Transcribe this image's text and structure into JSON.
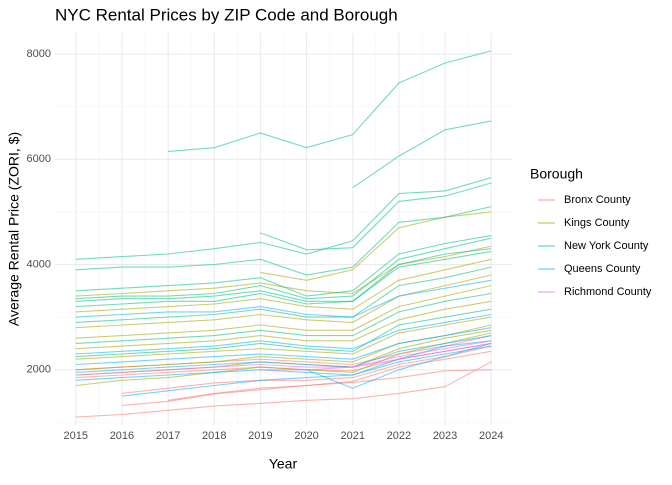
{
  "chart_data": {
    "type": "line",
    "title": "NYC Rental Prices by ZIP Code and Borough",
    "x_label": "Year",
    "y_label": "Average Rental Price (ZORI, $)",
    "legend_title": "Borough",
    "legend_position": "right",
    "grid": true,
    "x": [
      2015,
      2016,
      2017,
      2018,
      2019,
      2020,
      2021,
      2022,
      2023,
      2024
    ],
    "xlim": [
      2014.55,
      2024.45
    ],
    "xticks": [
      2015,
      2016,
      2017,
      2018,
      2019,
      2020,
      2021,
      2022,
      2023,
      2024
    ],
    "ylim": [
      950,
      8400
    ],
    "yticks": [
      2000,
      4000,
      6000,
      8000
    ],
    "yminor_ticks": [
      1000,
      3000,
      5000,
      7000
    ],
    "series": [
      {
        "name": "Bronx County",
        "color": "#F8766D",
        "lines": [
          [
            1100,
            1150,
            1230,
            1310,
            1360,
            1420,
            1450,
            1550,
            1680,
            2150
          ],
          [
            null,
            1320,
            1400,
            1540,
            1620,
            1700,
            1760,
            1850,
            1980,
            2000
          ],
          [
            null,
            null,
            1420,
            1550,
            1650,
            1700,
            1780,
            2050,
            2200,
            2350
          ],
          [
            1850,
            1900,
            1950,
            2000,
            2050,
            2000,
            1980,
            2200,
            2350,
            2500
          ],
          [
            null,
            1550,
            1650,
            1750,
            1800,
            1800,
            1850,
            2100,
            2250,
            2450
          ],
          [
            2000,
            2050,
            2100,
            2150,
            2200,
            2150,
            2100,
            2300,
            2450,
            2650
          ]
        ]
      },
      {
        "name": "Kings County",
        "color": "#A3A500",
        "lines": [
          [
            2800,
            2850,
            2900,
            2950,
            3050,
            2950,
            2900,
            3400,
            3600,
            3800
          ],
          [
            2600,
            2650,
            2700,
            2750,
            2850,
            2750,
            2750,
            3200,
            3400,
            3600
          ],
          [
            3100,
            3150,
            3200,
            3250,
            3350,
            3200,
            3150,
            3700,
            3900,
            4100
          ],
          [
            2400,
            2450,
            2500,
            2550,
            2650,
            2550,
            2550,
            2950,
            3150,
            3300
          ],
          [
            2200,
            2250,
            2300,
            2350,
            2400,
            2350,
            2300,
            2700,
            2850,
            3000
          ],
          [
            1700,
            1800,
            1850,
            1950,
            2050,
            2000,
            1950,
            2300,
            2500,
            2700
          ],
          [
            3400,
            3450,
            3500,
            3550,
            3650,
            3500,
            3450,
            4000,
            4150,
            4350
          ],
          [
            null,
            null,
            null,
            null,
            3850,
            3700,
            3900,
            4700,
            4900,
            5000
          ],
          [
            2000,
            2050,
            2100,
            2150,
            2250,
            2200,
            2150,
            2500,
            2650,
            2850
          ],
          [
            1900,
            1950,
            2000,
            2050,
            2150,
            2100,
            2050,
            2400,
            2600,
            2750
          ]
        ]
      },
      {
        "name": "New York County",
        "color": "#00BF7D",
        "lines": [
          [
            null,
            null,
            6150,
            6220,
            6500,
            6220,
            6470,
            7450,
            7830,
            8060
          ],
          [
            null,
            null,
            null,
            null,
            null,
            null,
            5460,
            6060,
            6560,
            6730
          ],
          [
            4100,
            4150,
            4200,
            4300,
            4420,
            4200,
            4450,
            5350,
            5400,
            5650
          ],
          [
            null,
            null,
            null,
            null,
            4600,
            4280,
            4320,
            5200,
            5300,
            5550
          ],
          [
            3900,
            3950,
            3950,
            4000,
            4100,
            3800,
            3950,
            4800,
            4900,
            5100
          ],
          [
            3500,
            3550,
            3600,
            3650,
            3750,
            3400,
            3500,
            4200,
            4400,
            4550
          ],
          [
            3350,
            3400,
            3400,
            3450,
            3600,
            3350,
            3400,
            4100,
            4300,
            4500
          ],
          [
            3300,
            3350,
            3350,
            3400,
            3500,
            3300,
            3300,
            4000,
            4200,
            4300
          ],
          [
            3200,
            3250,
            3300,
            3300,
            3450,
            3250,
            3300,
            3950,
            4100,
            4250
          ],
          [
            2900,
            2950,
            3000,
            3050,
            3150,
            3000,
            3000,
            3600,
            3750,
            3950
          ],
          [
            2500,
            2550,
            2600,
            2650,
            2750,
            2650,
            2650,
            3100,
            3300,
            3450
          ],
          [
            2250,
            2300,
            2350,
            2400,
            2500,
            2400,
            2350,
            2850,
            3000,
            3150
          ]
        ]
      },
      {
        "name": "Queens County",
        "color": "#00B0F6",
        "lines": [
          [
            2100,
            2150,
            2200,
            2250,
            2300,
            2250,
            2200,
            2500,
            2650,
            2800
          ],
          [
            1950,
            2000,
            2050,
            2100,
            2150,
            2100,
            2050,
            2350,
            2500,
            2650
          ],
          [
            null,
            1500,
            1600,
            1700,
            1800,
            1850,
            1900,
            2200,
            2450,
            2550
          ],
          [
            3000,
            3050,
            3100,
            3100,
            3200,
            3050,
            3000,
            3400,
            3550,
            3700
          ],
          [
            2300,
            2350,
            2400,
            2450,
            2550,
            2450,
            2400,
            2750,
            2900,
            3050
          ],
          [
            null,
            null,
            null,
            null,
            null,
            2000,
            1650,
            2000,
            2250,
            2500
          ],
          [
            1800,
            1850,
            1900,
            1950,
            2000,
            1950,
            1900,
            2150,
            2300,
            2450
          ]
        ]
      },
      {
        "name": "Richmond County",
        "color": "#E76BF3",
        "lines": [
          [
            1900,
            1950,
            2000,
            2050,
            2100,
            2050,
            2050,
            2200,
            2350,
            2500
          ],
          [
            null,
            null,
            null,
            null,
            2000,
            2000,
            2050,
            2250,
            2400,
            2550
          ]
        ]
      }
    ]
  }
}
